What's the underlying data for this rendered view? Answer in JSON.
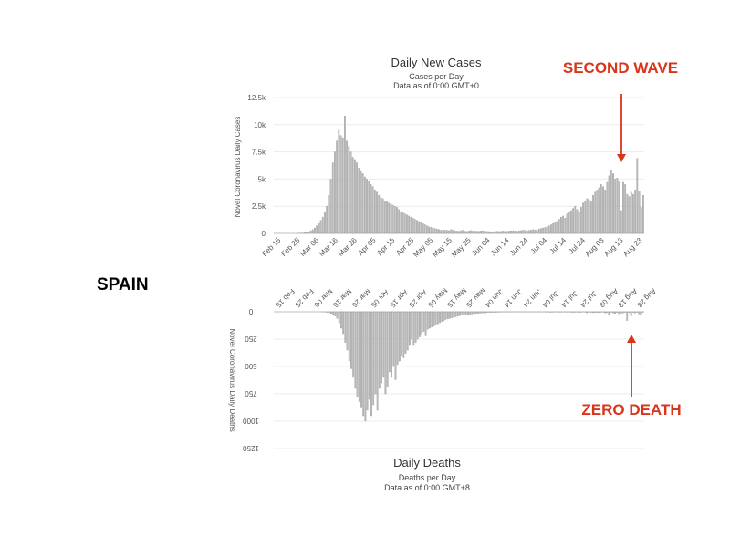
{
  "country_label": "SPAIN",
  "annotations": {
    "second_wave": "SECOND WAVE",
    "zero_death": "ZERO DEATH",
    "color": "#d8361c"
  },
  "chart_data": [
    {
      "type": "bar",
      "title": "Daily New Cases",
      "subtitle_line1": "Cases per Day",
      "subtitle_line2": "Data as of 0:00 GMT+0",
      "ylabel": "Novel Coronavirus Daily Cases",
      "ylim": [
        0,
        12500
      ],
      "ytick_values": [
        0,
        2500,
        5000,
        7500,
        10000,
        12500
      ],
      "ytick_labels": [
        "0",
        "2.5k",
        "5k",
        "7.5k",
        "10k",
        "12.5k"
      ],
      "x_tick_labels": [
        "Feb 15",
        "Feb 25",
        "Mar 06",
        "Mar 16",
        "Mar 26",
        "Apr 05",
        "Apr 15",
        "Apr 25",
        "May 05",
        "May 15",
        "May 25",
        "Jun 04",
        "Jun 14",
        "Jun 24",
        "Jul 04",
        "Jul 14",
        "Jul 24",
        "Aug 03",
        "Aug 13",
        "Aug 23"
      ],
      "x_start": "Feb 15",
      "x_end": "Aug 26",
      "values": [
        0,
        0,
        0,
        0,
        0,
        0,
        0,
        0,
        0,
        0,
        0,
        5,
        10,
        20,
        30,
        60,
        100,
        150,
        250,
        350,
        500,
        700,
        900,
        1200,
        1500,
        2000,
        2500,
        3500,
        5000,
        6500,
        7500,
        8500,
        9500,
        9000,
        8800,
        10800,
        8500,
        8000,
        7500,
        7000,
        6800,
        6500,
        6000,
        5700,
        5500,
        5200,
        5000,
        4800,
        4500,
        4300,
        4000,
        3800,
        3500,
        3300,
        3200,
        3000,
        2900,
        2800,
        2700,
        2600,
        2500,
        2400,
        2200,
        2000,
        1900,
        1800,
        1700,
        1600,
        1500,
        1400,
        1300,
        1200,
        1100,
        1000,
        900,
        800,
        700,
        600,
        550,
        500,
        450,
        400,
        350,
        300,
        300,
        320,
        280,
        250,
        350,
        300,
        250,
        220,
        200,
        250,
        300,
        200,
        180,
        220,
        260,
        240,
        200,
        210,
        190,
        230,
        250,
        200,
        180,
        170,
        160,
        150,
        180,
        200,
        170,
        190,
        220,
        180,
        200,
        210,
        230,
        250,
        220,
        200,
        240,
        260,
        300,
        280,
        250,
        270,
        300,
        350,
        320,
        300,
        400,
        450,
        500,
        550,
        600,
        700,
        800,
        900,
        1000,
        1100,
        1300,
        1500,
        1600,
        1400,
        1800,
        2000,
        2100,
        2300,
        2500,
        2200,
        2000,
        2400,
        2800,
        3000,
        3200,
        3100,
        2900,
        3500,
        3800,
        4000,
        4200,
        4500,
        4300,
        4000,
        4700,
        5300,
        5800,
        5500,
        5000,
        5100,
        4800,
        2100,
        4700,
        4500,
        3600,
        3400,
        3800,
        3600,
        4000,
        6900,
        3900,
        2400,
        3500
      ],
      "grid": true
    },
    {
      "type": "bar",
      "title": "Daily Deaths",
      "subtitle_line1": "Deaths per Day",
      "subtitle_line2": "Data as of 0:00 GMT+8",
      "ylabel": "Novel Coronavirus Daily Deaths",
      "orientation": "upside-down (mirrored)",
      "ylim": [
        0,
        1250
      ],
      "ytick_values": [
        0,
        250,
        500,
        750,
        1000,
        1250
      ],
      "ytick_labels": [
        "0",
        "250",
        "500",
        "750",
        "1000",
        "1250"
      ],
      "x_tick_labels": [
        "Feb 15",
        "Feb 25",
        "Mar 06",
        "Mar 16",
        "Mar 26",
        "Apr 05",
        "Apr 15",
        "Apr 25",
        "May 05",
        "May 15",
        "May 25",
        "Jun 04",
        "Jun 14",
        "Jun 24",
        "Jul 04",
        "Jul 14",
        "Jul 24",
        "Aug 03",
        "Aug 13",
        "Aug 23"
      ],
      "values": [
        0,
        0,
        0,
        0,
        0,
        0,
        0,
        0,
        0,
        0,
        0,
        0,
        0,
        0,
        0,
        0,
        0,
        0,
        0,
        0,
        0,
        0,
        0,
        0,
        1,
        2,
        5,
        10,
        15,
        25,
        40,
        60,
        100,
        150,
        200,
        280,
        350,
        450,
        520,
        600,
        700,
        780,
        820,
        870,
        950,
        1000,
        900,
        800,
        950,
        850,
        750,
        900,
        700,
        650,
        600,
        750,
        680,
        550,
        600,
        500,
        620,
        480,
        450,
        400,
        420,
        380,
        350,
        300,
        250,
        300,
        280,
        250,
        230,
        200,
        180,
        220,
        160,
        150,
        140,
        130,
        120,
        110,
        100,
        90,
        80,
        70,
        65,
        60,
        55,
        50,
        45,
        40,
        35,
        30,
        30,
        28,
        25,
        22,
        20,
        18,
        15,
        15,
        12,
        10,
        10,
        8,
        5,
        5,
        5,
        3,
        5,
        3,
        3,
        2,
        2,
        3,
        2,
        2,
        1,
        2,
        1,
        2,
        1,
        1,
        2,
        2,
        3,
        1,
        1,
        2,
        1,
        1,
        2,
        2,
        1,
        3,
        2,
        5,
        3,
        2,
        2,
        4,
        3,
        3,
        2,
        3,
        2,
        3,
        5,
        4,
        3,
        6,
        5,
        2,
        3,
        10,
        4,
        5,
        8,
        6,
        5,
        7,
        4,
        3,
        10,
        8,
        25,
        5,
        10,
        15,
        6,
        18,
        12,
        10,
        5,
        80,
        8,
        40,
        5,
        10,
        5,
        20,
        25,
        3
      ],
      "grid": true
    }
  ]
}
